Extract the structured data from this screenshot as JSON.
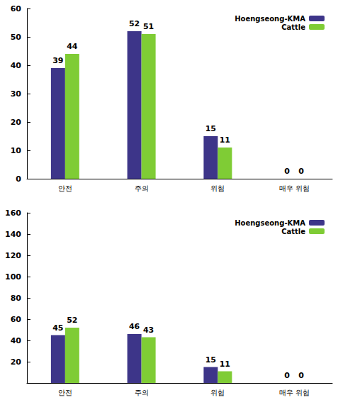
{
  "chart_data": [
    {
      "type": "bar",
      "categories": [
        "안전",
        "주의",
        "위험",
        "매우 위험"
      ],
      "series": [
        {
          "name": "Hoengseong-KMA",
          "color": "#3d3589",
          "values": [
            39,
            52,
            15,
            0
          ]
        },
        {
          "name": "Cattle",
          "color": "#7fcc35",
          "values": [
            44,
            51,
            11,
            0
          ]
        }
      ],
      "ylim": [
        0,
        60
      ],
      "yticks": [
        0,
        10,
        20,
        30,
        40,
        50,
        60
      ],
      "grid": false,
      "legend": "upper right",
      "data_labels": true
    },
    {
      "type": "bar",
      "categories": [
        "안전",
        "주의",
        "위험",
        "매우 위험"
      ],
      "series": [
        {
          "name": "Hoengseong-KMA",
          "color": "#3d3589",
          "values": [
            45,
            46,
            15,
            0
          ]
        },
        {
          "name": "Cattle",
          "color": "#7fcc35",
          "values": [
            52,
            43,
            11,
            0
          ]
        }
      ],
      "ylim": [
        0,
        160
      ],
      "yticks": [
        20,
        40,
        60,
        80,
        100,
        120,
        140,
        160
      ],
      "grid": false,
      "legend": "upper right",
      "data_labels": true
    }
  ]
}
